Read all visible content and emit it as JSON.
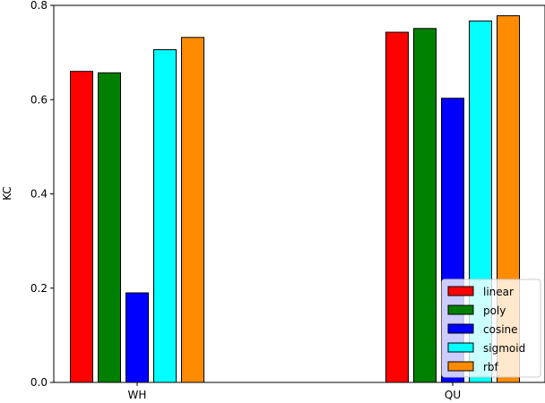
{
  "chart_data": {
    "type": "bar",
    "title": "",
    "xlabel": "",
    "ylabel": "KC",
    "ylim": [
      0,
      0.8
    ],
    "yticks": [
      "0.0",
      "0.2",
      "0.4",
      "0.6",
      "0.8"
    ],
    "grid": false,
    "legend_position": "bottom-right",
    "categories": [
      "WH",
      "QU"
    ],
    "series": [
      {
        "name": "linear",
        "color": "#ff0000",
        "values": [
          0.66,
          0.743
        ]
      },
      {
        "name": "poly",
        "color": "#008000",
        "values": [
          0.657,
          0.751
        ]
      },
      {
        "name": "cosine",
        "color": "#0000ff",
        "values": [
          0.19,
          0.603
        ]
      },
      {
        "name": "sigmoid",
        "color": "#00ffff",
        "values": [
          0.706,
          0.767
        ]
      },
      {
        "name": "rbf",
        "color": "#ff8c00",
        "values": [
          0.732,
          0.778
        ]
      }
    ]
  }
}
